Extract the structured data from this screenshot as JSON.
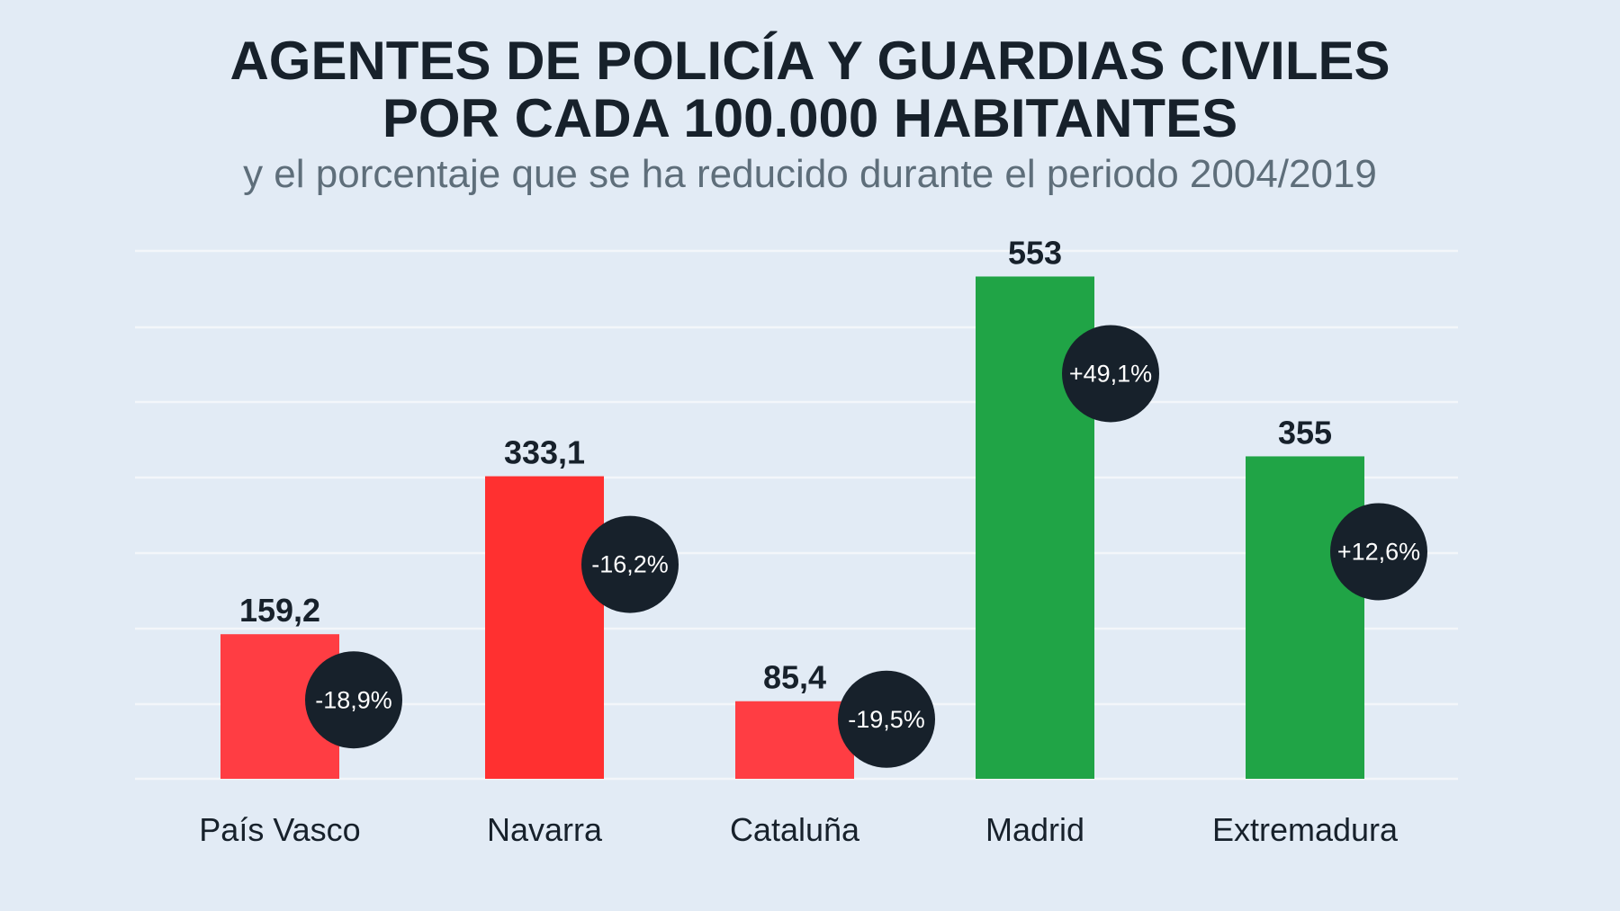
{
  "chart_data": {
    "type": "bar",
    "title_lines": [
      "AGENTES DE POLICÍA Y GUARDIAS CIVILES",
      "POR CADA 100.000 HABITANTES"
    ],
    "subtitle": "y el porcentaje que se ha reducido durante el periodo 2004/2019",
    "categories": [
      "País Vasco",
      "Navarra",
      "Cataluña",
      "Madrid",
      "Extremadura"
    ],
    "values": [
      159.2,
      333.1,
      85.4,
      553,
      355
    ],
    "value_labels": [
      "159,2",
      "333,1",
      "85,4",
      "553",
      "355"
    ],
    "changes": [
      -18.9,
      -16.2,
      -19.5,
      49.1,
      12.6
    ],
    "change_labels": [
      "-18,9%",
      "-16,2%",
      "-19,5%",
      "+49,1%",
      "+12,6%"
    ],
    "bar_colors": [
      "#ff3d43",
      "#ff3030",
      "#ff3d43",
      "#20a446",
      "#20a446"
    ],
    "badge_color": "#17212b",
    "ylim": [
      0,
      600
    ],
    "grid": true,
    "xlabel": "",
    "ylabel": ""
  }
}
